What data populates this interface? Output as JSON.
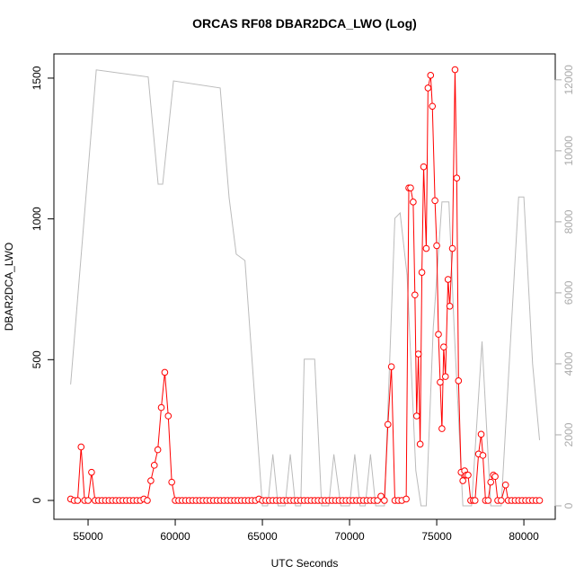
{
  "chart_data": {
    "type": "line",
    "title": "ORCAS RF08 DBAR2DCA_LWO (Log)",
    "x_label": "UTC Seconds",
    "y_label": "DBAR2DCA_LWO",
    "xlim": [
      53040,
      81800
    ],
    "xticks": [
      55000,
      60000,
      65000,
      70000,
      75000,
      80000
    ],
    "ylim": [
      -67,
      1586
    ],
    "yticks": [
      0,
      500,
      1000,
      1500
    ],
    "y2lim": [
      -380,
      12730
    ],
    "y2ticks": [
      0,
      2000,
      4000,
      6000,
      8000,
      10000,
      12000
    ],
    "series": [
      {
        "color": "#ff0000",
        "axis": "y",
        "x": [
          54000,
          54200,
          54400,
          54600,
          54800,
          55000,
          55200,
          55400,
          55600,
          55800,
          56000,
          56200,
          56400,
          56600,
          56800,
          57000,
          57200,
          57400,
          57600,
          57800,
          58000,
          58200,
          58400,
          58600,
          58800,
          59000,
          59200,
          59400,
          59600,
          59800,
          60000,
          60200,
          60400,
          60600,
          60800,
          61000,
          61200,
          61400,
          61600,
          61800,
          62000,
          62200,
          62400,
          62600,
          62800,
          63000,
          63200,
          63400,
          63600,
          63800,
          64000,
          64200,
          64400,
          64600,
          64800,
          65000,
          65200,
          65400,
          65600,
          65800,
          66000,
          66200,
          66400,
          66600,
          66800,
          67000,
          67200,
          67400,
          67600,
          67800,
          68000,
          68200,
          68400,
          68600,
          68800,
          69000,
          69200,
          69400,
          69600,
          69800,
          70000,
          70200,
          70400,
          70600,
          70800,
          71000,
          71200,
          71400,
          71600,
          71800,
          72000,
          72200,
          72400,
          72600,
          72800,
          73000,
          73250,
          73400,
          73500,
          73650,
          73750,
          73850,
          73950,
          74050,
          74150,
          74250,
          74400,
          74500,
          74650,
          74750,
          74900,
          75000,
          75100,
          75200,
          75300,
          75400,
          75500,
          75650,
          75750,
          75900,
          76050,
          76150,
          76250,
          76400,
          76500,
          76600,
          76700,
          76800,
          76950,
          77100,
          77200,
          77400,
          77550,
          77650,
          77800,
          77950,
          78100,
          78250,
          78350,
          78500,
          78700,
          78950,
          79100,
          79300,
          79500,
          79700,
          79900,
          80100,
          80300,
          80500,
          80700,
          80900
        ],
        "values": [
          5,
          0,
          0,
          190,
          0,
          0,
          100,
          0,
          0,
          0,
          0,
          0,
          0,
          0,
          0,
          0,
          0,
          0,
          0,
          0,
          0,
          5,
          0,
          70,
          125,
          180,
          330,
          455,
          300,
          65,
          0,
          0,
          0,
          0,
          0,
          0,
          0,
          0,
          0,
          0,
          0,
          0,
          0,
          0,
          0,
          0,
          0,
          0,
          0,
          0,
          0,
          0,
          0,
          0,
          5,
          0,
          0,
          0,
          0,
          0,
          0,
          0,
          0,
          0,
          0,
          0,
          0,
          0,
          0,
          0,
          0,
          0,
          0,
          0,
          0,
          0,
          0,
          0,
          0,
          0,
          0,
          0,
          0,
          0,
          0,
          0,
          0,
          0,
          0,
          15,
          0,
          270,
          475,
          0,
          0,
          0,
          5,
          1110,
          1110,
          1060,
          730,
          300,
          520,
          200,
          810,
          1185,
          895,
          1465,
          1510,
          1400,
          1065,
          905,
          590,
          420,
          255,
          545,
          440,
          785,
          690,
          895,
          1530,
          1145,
          425,
          100,
          70,
          105,
          90,
          90,
          0,
          0,
          0,
          165,
          235,
          160,
          0,
          0,
          65,
          90,
          85,
          0,
          0,
          55,
          0,
          0,
          0,
          0,
          0,
          0,
          0,
          0,
          0,
          0
        ]
      },
      {
        "color": "#bbbbbb",
        "axis": "y2",
        "x": [
          54000,
          55470,
          58450,
          59020,
          59280,
          59900,
          62580,
          63090,
          63500,
          64000,
          65000,
          65300,
          65600,
          65900,
          66300,
          66600,
          66900,
          67200,
          67400,
          68000,
          68400,
          68800,
          69100,
          69500,
          70000,
          70300,
          70600,
          70900,
          71200,
          71500,
          72000,
          72600,
          72900,
          73300,
          73800,
          74100,
          74400,
          74800,
          75300,
          75700,
          76000,
          76500,
          77000,
          77600,
          78100,
          78700,
          79700,
          80000,
          80500,
          80900
        ],
        "values": [
          3420,
          12280,
          12080,
          9060,
          9060,
          11970,
          11770,
          8680,
          7090,
          6910,
          0,
          0,
          1450,
          0,
          0,
          1450,
          0,
          0,
          4130,
          4130,
          0,
          0,
          1450,
          0,
          0,
          1450,
          0,
          0,
          1450,
          0,
          0,
          8100,
          8250,
          6500,
          1000,
          0,
          0,
          5000,
          8560,
          8560,
          5000,
          0,
          0,
          4630,
          0,
          0,
          8700,
          8700,
          4000,
          1850
        ]
      }
    ]
  }
}
